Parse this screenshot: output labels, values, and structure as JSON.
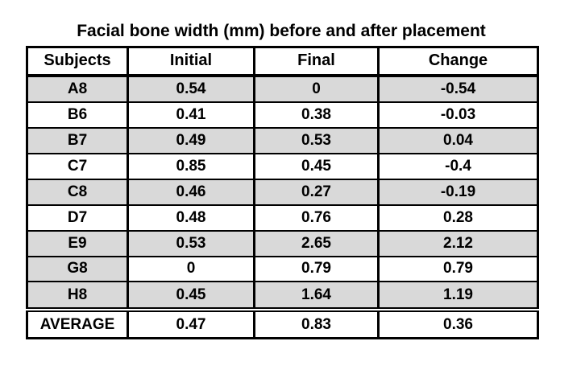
{
  "title": "Facial bone width (mm) before and after placement",
  "table": {
    "columns": [
      "Subjects",
      "Initial",
      "Final",
      "Change"
    ],
    "rows": [
      {
        "subject": "A8",
        "initial": "0.54",
        "final": "0",
        "change": "-0.54",
        "shading": "full"
      },
      {
        "subject": "B6",
        "initial": "0.41",
        "final": "0.38",
        "change": "-0.03",
        "shading": "none"
      },
      {
        "subject": "B7",
        "initial": "0.49",
        "final": "0.53",
        "change": "0.04",
        "shading": "full"
      },
      {
        "subject": "C7",
        "initial": "0.85",
        "final": "0.45",
        "change": "-0.4",
        "shading": "none"
      },
      {
        "subject": "C8",
        "initial": "0.46",
        "final": "0.27",
        "change": "-0.19",
        "shading": "full"
      },
      {
        "subject": "D7",
        "initial": "0.48",
        "final": "0.76",
        "change": "0.28",
        "shading": "none"
      },
      {
        "subject": "E9",
        "initial": "0.53",
        "final": "2.65",
        "change": "2.12",
        "shading": "full"
      },
      {
        "subject": "G8",
        "initial": "0",
        "final": "0.79",
        "change": "0.79",
        "shading": "subject-only"
      },
      {
        "subject": "H8",
        "initial": "0.45",
        "final": "1.64",
        "change": "1.19",
        "shading": "full"
      }
    ],
    "average_row": {
      "label": "AVERAGE",
      "initial": "0.47",
      "final": "0.83",
      "change": "0.36"
    }
  },
  "colors": {
    "shading": "#d9d9d9",
    "border": "#000000",
    "text": "#000000",
    "background": "#ffffff"
  }
}
